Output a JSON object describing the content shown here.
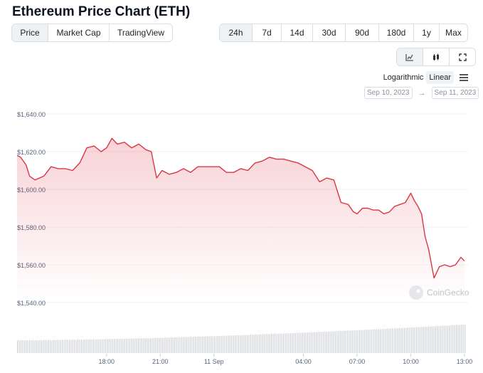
{
  "title": "Ethereum Price Chart (ETH)",
  "view_tabs": [
    "Price",
    "Market Cap",
    "TradingView"
  ],
  "active_tab": 0,
  "ranges": [
    "24h",
    "7d",
    "14d",
    "30d",
    "90d",
    "180d",
    "1y",
    "Max"
  ],
  "active_range": 0,
  "chart_type_icons": [
    "line-chart-icon",
    "candlestick-icon",
    "fullscreen-icon"
  ],
  "scale": {
    "log_label": "Logarithmic",
    "linear_label": "Linear",
    "active": "Linear"
  },
  "date_range": {
    "from": "Sep 10, 2023",
    "arrow": "→",
    "to": "Sep 11, 2023"
  },
  "watermark": "CoinGecko",
  "colors": {
    "line": "#dc3545",
    "accent_bg": "#eff2f5",
    "volume": "#cfd2d6"
  },
  "chart_data": {
    "type": "area",
    "title": "",
    "ylabel": "",
    "xlabel": "",
    "ylim": [
      1540,
      1640
    ],
    "y_ticks": [
      1540,
      1560,
      1580,
      1600,
      1620,
      1640
    ],
    "y_tick_labels": [
      "$1,540.00",
      "$1,560.00",
      "$1,580.00",
      "$1,600.00",
      "$1,620.00",
      "$1,640.00"
    ],
    "x_ticks": [
      1.0,
      4.0,
      7.0,
      11.0,
      14.0,
      17.0,
      20.0,
      23.0
    ],
    "x_tick_labels": [
      "18:00",
      "21:00",
      "11 Sep",
      "04:00",
      "07:00",
      "10:00",
      "13:00"
    ],
    "x_tick_positions": [
      4.0,
      7.0,
      10.0,
      15.0,
      18.0,
      21.0,
      24.0
    ],
    "xlim": [
      -1.0,
      24.2
    ],
    "grid": true,
    "series": [
      {
        "x": [
          -1.0,
          -0.8,
          -0.5,
          -0.3,
          0.0,
          0.5,
          0.9,
          1.3,
          1.7,
          2.1,
          2.5,
          2.9,
          3.3,
          3.7,
          4.0,
          4.3,
          4.6,
          5.0,
          5.4,
          5.8,
          6.2,
          6.5,
          6.8,
          7.1,
          7.5,
          7.9,
          8.3,
          8.7,
          9.1,
          9.5,
          9.9,
          10.3,
          10.7,
          11.1,
          11.5,
          11.9,
          12.3,
          12.7,
          13.1,
          13.5,
          13.9,
          14.3,
          14.7,
          15.1,
          15.5,
          15.9,
          16.3,
          16.7,
          17.1,
          17.5,
          17.8,
          18.0,
          18.3,
          18.6,
          18.9,
          19.2,
          19.5,
          19.8,
          20.1,
          20.4,
          20.7,
          21.0,
          21.2,
          21.4,
          21.6,
          21.8,
          22.0,
          22.3,
          22.6,
          22.9,
          23.2,
          23.5,
          23.8,
          24.0
        ],
        "y": [
          1618,
          1617,
          1613,
          1607,
          1605,
          1607,
          1612,
          1611,
          1611,
          1610,
          1614,
          1622,
          1623,
          1620,
          1622,
          1627,
          1624,
          1625,
          1622,
          1624,
          1621,
          1620,
          1606,
          1610,
          1608,
          1609,
          1611,
          1609,
          1612,
          1612,
          1612,
          1612,
          1609,
          1609,
          1611,
          1610,
          1614,
          1615,
          1617,
          1616,
          1616,
          1615,
          1614,
          1612,
          1610,
          1604,
          1606,
          1605,
          1593,
          1592,
          1588,
          1587,
          1590,
          1590,
          1589,
          1589,
          1587,
          1588,
          1591,
          1592,
          1593,
          1598,
          1594,
          1591,
          1587,
          1575,
          1568,
          1553,
          1559,
          1560,
          1559,
          1560,
          1564,
          1562
        ]
      }
    ],
    "volume": {
      "x_start": -1.0,
      "x_end": 24.0,
      "bars": 260,
      "relative_min": 0.35,
      "relative_max": 1.0
    }
  }
}
